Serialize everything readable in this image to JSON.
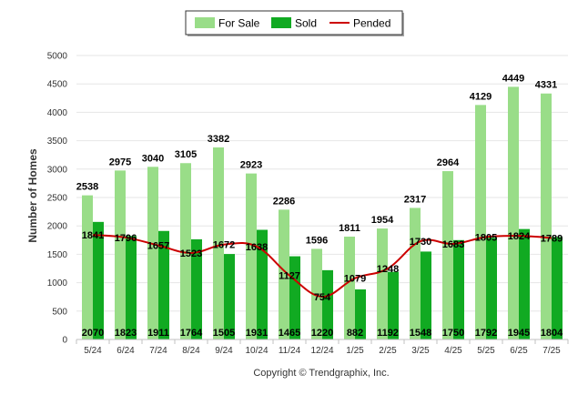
{
  "chart_data": {
    "type": "bar",
    "categories": [
      "5/24",
      "6/24",
      "7/24",
      "8/24",
      "9/24",
      "10/24",
      "11/24",
      "12/24",
      "1/25",
      "2/25",
      "3/25",
      "4/25",
      "5/25",
      "6/25",
      "7/25"
    ],
    "series": [
      {
        "name": "For Sale",
        "type": "bar",
        "color": "#99dd88",
        "values": [
          2538,
          2975,
          3040,
          3105,
          3382,
          2923,
          2286,
          1596,
          1811,
          1954,
          2317,
          2964,
          4129,
          4449,
          4331
        ]
      },
      {
        "name": "Sold",
        "type": "bar",
        "color": "#11aa22",
        "values": [
          2070,
          1823,
          1911,
          1764,
          1505,
          1931,
          1465,
          1220,
          882,
          1192,
          1548,
          1750,
          1792,
          1945,
          1804
        ]
      },
      {
        "name": "Pended",
        "type": "line",
        "color": "#cc0000",
        "values": [
          1841,
          1796,
          1657,
          1523,
          1672,
          1638,
          1127,
          754,
          1079,
          1248,
          1730,
          1683,
          1805,
          1824,
          1789
        ]
      }
    ],
    "ylabel": "Number of Homes",
    "xlabel": "",
    "ylim": [
      0,
      5000
    ],
    "yticks": [
      0,
      500,
      1000,
      1500,
      2000,
      2500,
      3000,
      3500,
      4000,
      4500,
      5000
    ],
    "grid": true,
    "legend_position": "top-center"
  },
  "copyright": "Copyright © Trendgraphix, Inc."
}
